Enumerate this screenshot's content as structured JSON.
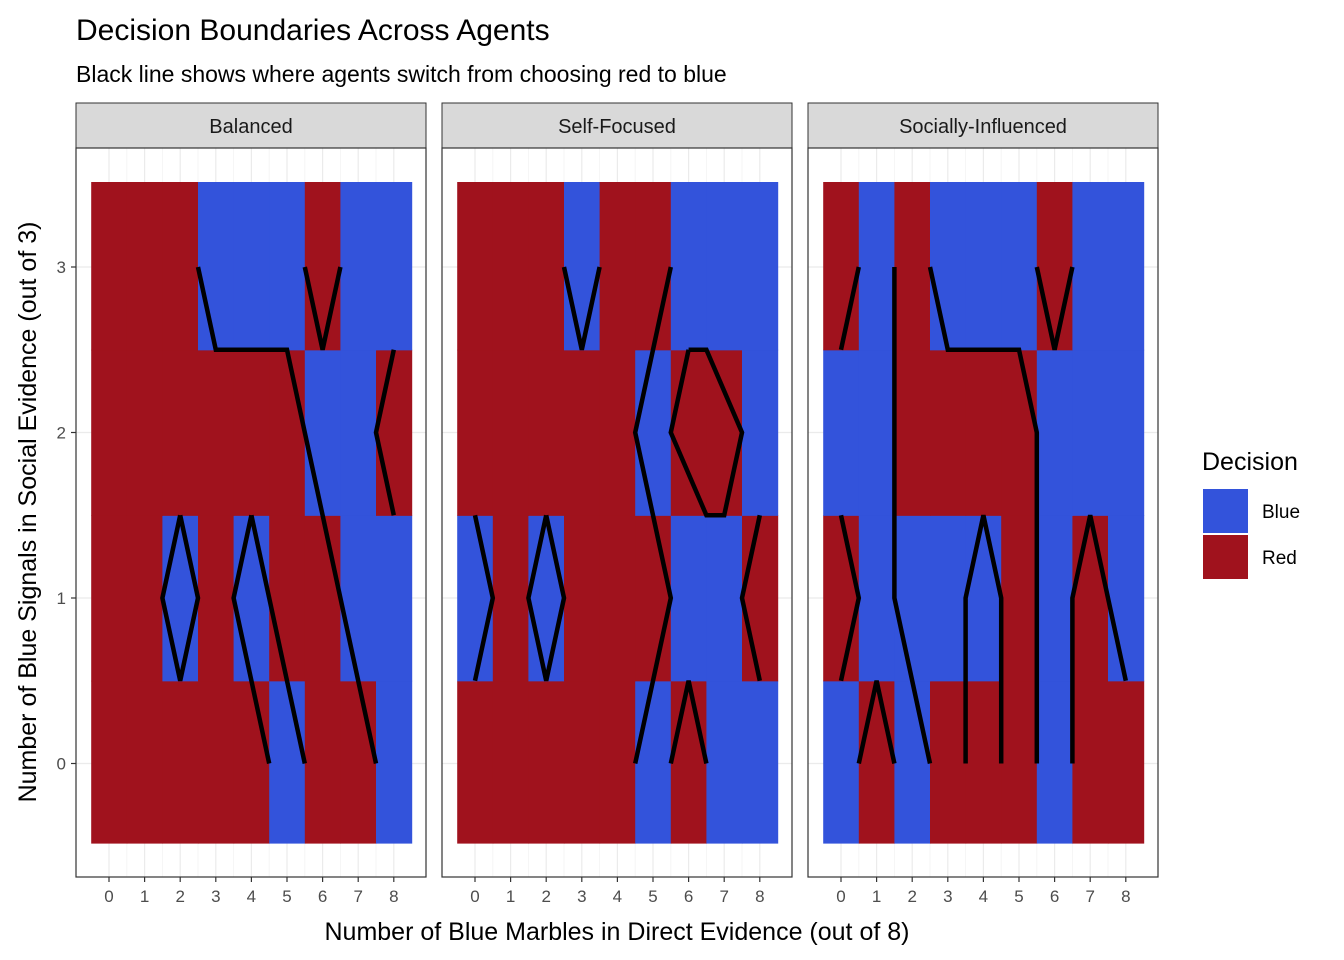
{
  "chart_data": {
    "type": "heatmap",
    "title": "Decision Boundaries Across Agents",
    "subtitle": "Black line shows where agents switch from choosing red to blue",
    "xlabel": "Number of Blue Marbles in Direct Evidence (out of 8)",
    "ylabel": "Number of Blue Signals in Social Evidence (out of 3)",
    "x_ticks": [
      0,
      1,
      2,
      3,
      4,
      5,
      6,
      7,
      8
    ],
    "y_ticks": [
      0,
      1,
      2,
      3
    ],
    "legend": {
      "title": "Decision",
      "entries": [
        {
          "label": "Blue",
          "color": "#3353DB"
        },
        {
          "label": "Red",
          "color": "#A0121D"
        }
      ]
    },
    "colors": {
      "Blue": "#3353DB",
      "Red": "#A0121D",
      "line": "#000000"
    },
    "facets": [
      {
        "name": "Balanced",
        "grid": [
          [
            "R",
            "R",
            "R",
            "R",
            "R",
            "B",
            "R",
            "R",
            "B"
          ],
          [
            "R",
            "R",
            "B",
            "R",
            "B",
            "R",
            "R",
            "B",
            "B"
          ],
          [
            "R",
            "R",
            "R",
            "R",
            "R",
            "R",
            "B",
            "B",
            "R"
          ],
          [
            "R",
            "R",
            "R",
            "B",
            "B",
            "B",
            "R",
            "B",
            "B"
          ]
        ],
        "boundary": [
          [
            [
              2.5,
              3
            ],
            [
              3,
              2.5
            ],
            [
              5,
              2.5
            ],
            [
              7.5,
              0
            ]
          ],
          [
            [
              5.5,
              3
            ],
            [
              6,
              2.5
            ],
            [
              6.5,
              3
            ]
          ],
          [
            [
              8,
              2.5
            ],
            [
              7.5,
              2
            ],
            [
              8,
              1.5
            ]
          ],
          [
            [
              2,
              1.5
            ],
            [
              1.5,
              1
            ],
            [
              2,
              0.5
            ],
            [
              2.5,
              1
            ],
            [
              2,
              1.5
            ]
          ],
          [
            [
              4,
              1.5
            ],
            [
              3.5,
              1
            ],
            [
              4.5,
              0
            ]
          ],
          [
            [
              4,
              1.5
            ],
            [
              5.5,
              0
            ]
          ]
        ]
      },
      {
        "name": "Self-Focused",
        "grid": [
          [
            "R",
            "R",
            "R",
            "R",
            "R",
            "B",
            "R",
            "B",
            "B"
          ],
          [
            "B",
            "R",
            "B",
            "R",
            "R",
            "R",
            "B",
            "B",
            "R"
          ],
          [
            "R",
            "R",
            "R",
            "R",
            "R",
            "B",
            "R",
            "R",
            "B"
          ],
          [
            "R",
            "R",
            "R",
            "B",
            "R",
            "R",
            "B",
            "B",
            "B"
          ]
        ],
        "boundary": [
          [
            [
              2.5,
              3
            ],
            [
              3,
              2.5
            ],
            [
              3.5,
              3
            ]
          ],
          [
            [
              5.5,
              3
            ],
            [
              4.5,
              2
            ],
            [
              5.5,
              1
            ],
            [
              4.5,
              0
            ]
          ],
          [
            [
              6,
              2.5
            ],
            [
              6.5,
              2.5
            ],
            [
              7.5,
              2
            ],
            [
              7,
              1.5
            ],
            [
              6.5,
              1.5
            ],
            [
              5.5,
              2
            ],
            [
              6,
              2.5
            ]
          ],
          [
            [
              0,
              1.5
            ],
            [
              0.5,
              1
            ],
            [
              0,
              0.5
            ]
          ],
          [
            [
              2,
              1.5
            ],
            [
              1.5,
              1
            ],
            [
              2,
              0.5
            ],
            [
              2.5,
              1
            ],
            [
              2,
              1.5
            ]
          ],
          [
            [
              8,
              1.5
            ],
            [
              7.5,
              1
            ],
            [
              8,
              0.5
            ]
          ],
          [
            [
              5.5,
              0
            ],
            [
              6,
              0.5
            ],
            [
              6.5,
              0
            ]
          ]
        ]
      },
      {
        "name": "Socially-Influenced",
        "grid": [
          [
            "B",
            "R",
            "B",
            "R",
            "R",
            "R",
            "B",
            "R",
            "R"
          ],
          [
            "R",
            "B",
            "B",
            "B",
            "B",
            "R",
            "B",
            "R",
            "B"
          ],
          [
            "B",
            "B",
            "R",
            "R",
            "R",
            "R",
            "B",
            "B",
            "B"
          ],
          [
            "R",
            "B",
            "R",
            "B",
            "B",
            "B",
            "R",
            "B",
            "B"
          ]
        ],
        "boundary": [
          [
            [
              0,
              2.5
            ],
            [
              0.5,
              3
            ]
          ],
          [
            [
              1.5,
              3
            ],
            [
              1.5,
              1
            ],
            [
              2.5,
              0
            ]
          ],
          [
            [
              2.5,
              3
            ],
            [
              3,
              2.5
            ],
            [
              5,
              2.5
            ],
            [
              5.5,
              2
            ],
            [
              5.5,
              0
            ]
          ],
          [
            [
              5.5,
              3
            ],
            [
              6,
              2.5
            ],
            [
              6.5,
              3
            ]
          ],
          [
            [
              0,
              1.5
            ],
            [
              0.5,
              1
            ],
            [
              0,
              0.5
            ]
          ],
          [
            [
              0.5,
              0
            ],
            [
              1,
              0.5
            ],
            [
              1.5,
              0
            ]
          ],
          [
            [
              3.5,
              0
            ],
            [
              3.5,
              1
            ],
            [
              4,
              1.5
            ],
            [
              4.5,
              1
            ],
            [
              4.5,
              0
            ]
          ],
          [
            [
              6.5,
              0
            ],
            [
              6.5,
              1
            ],
            [
              7,
              1.5
            ],
            [
              8,
              0.5
            ]
          ]
        ]
      }
    ]
  }
}
